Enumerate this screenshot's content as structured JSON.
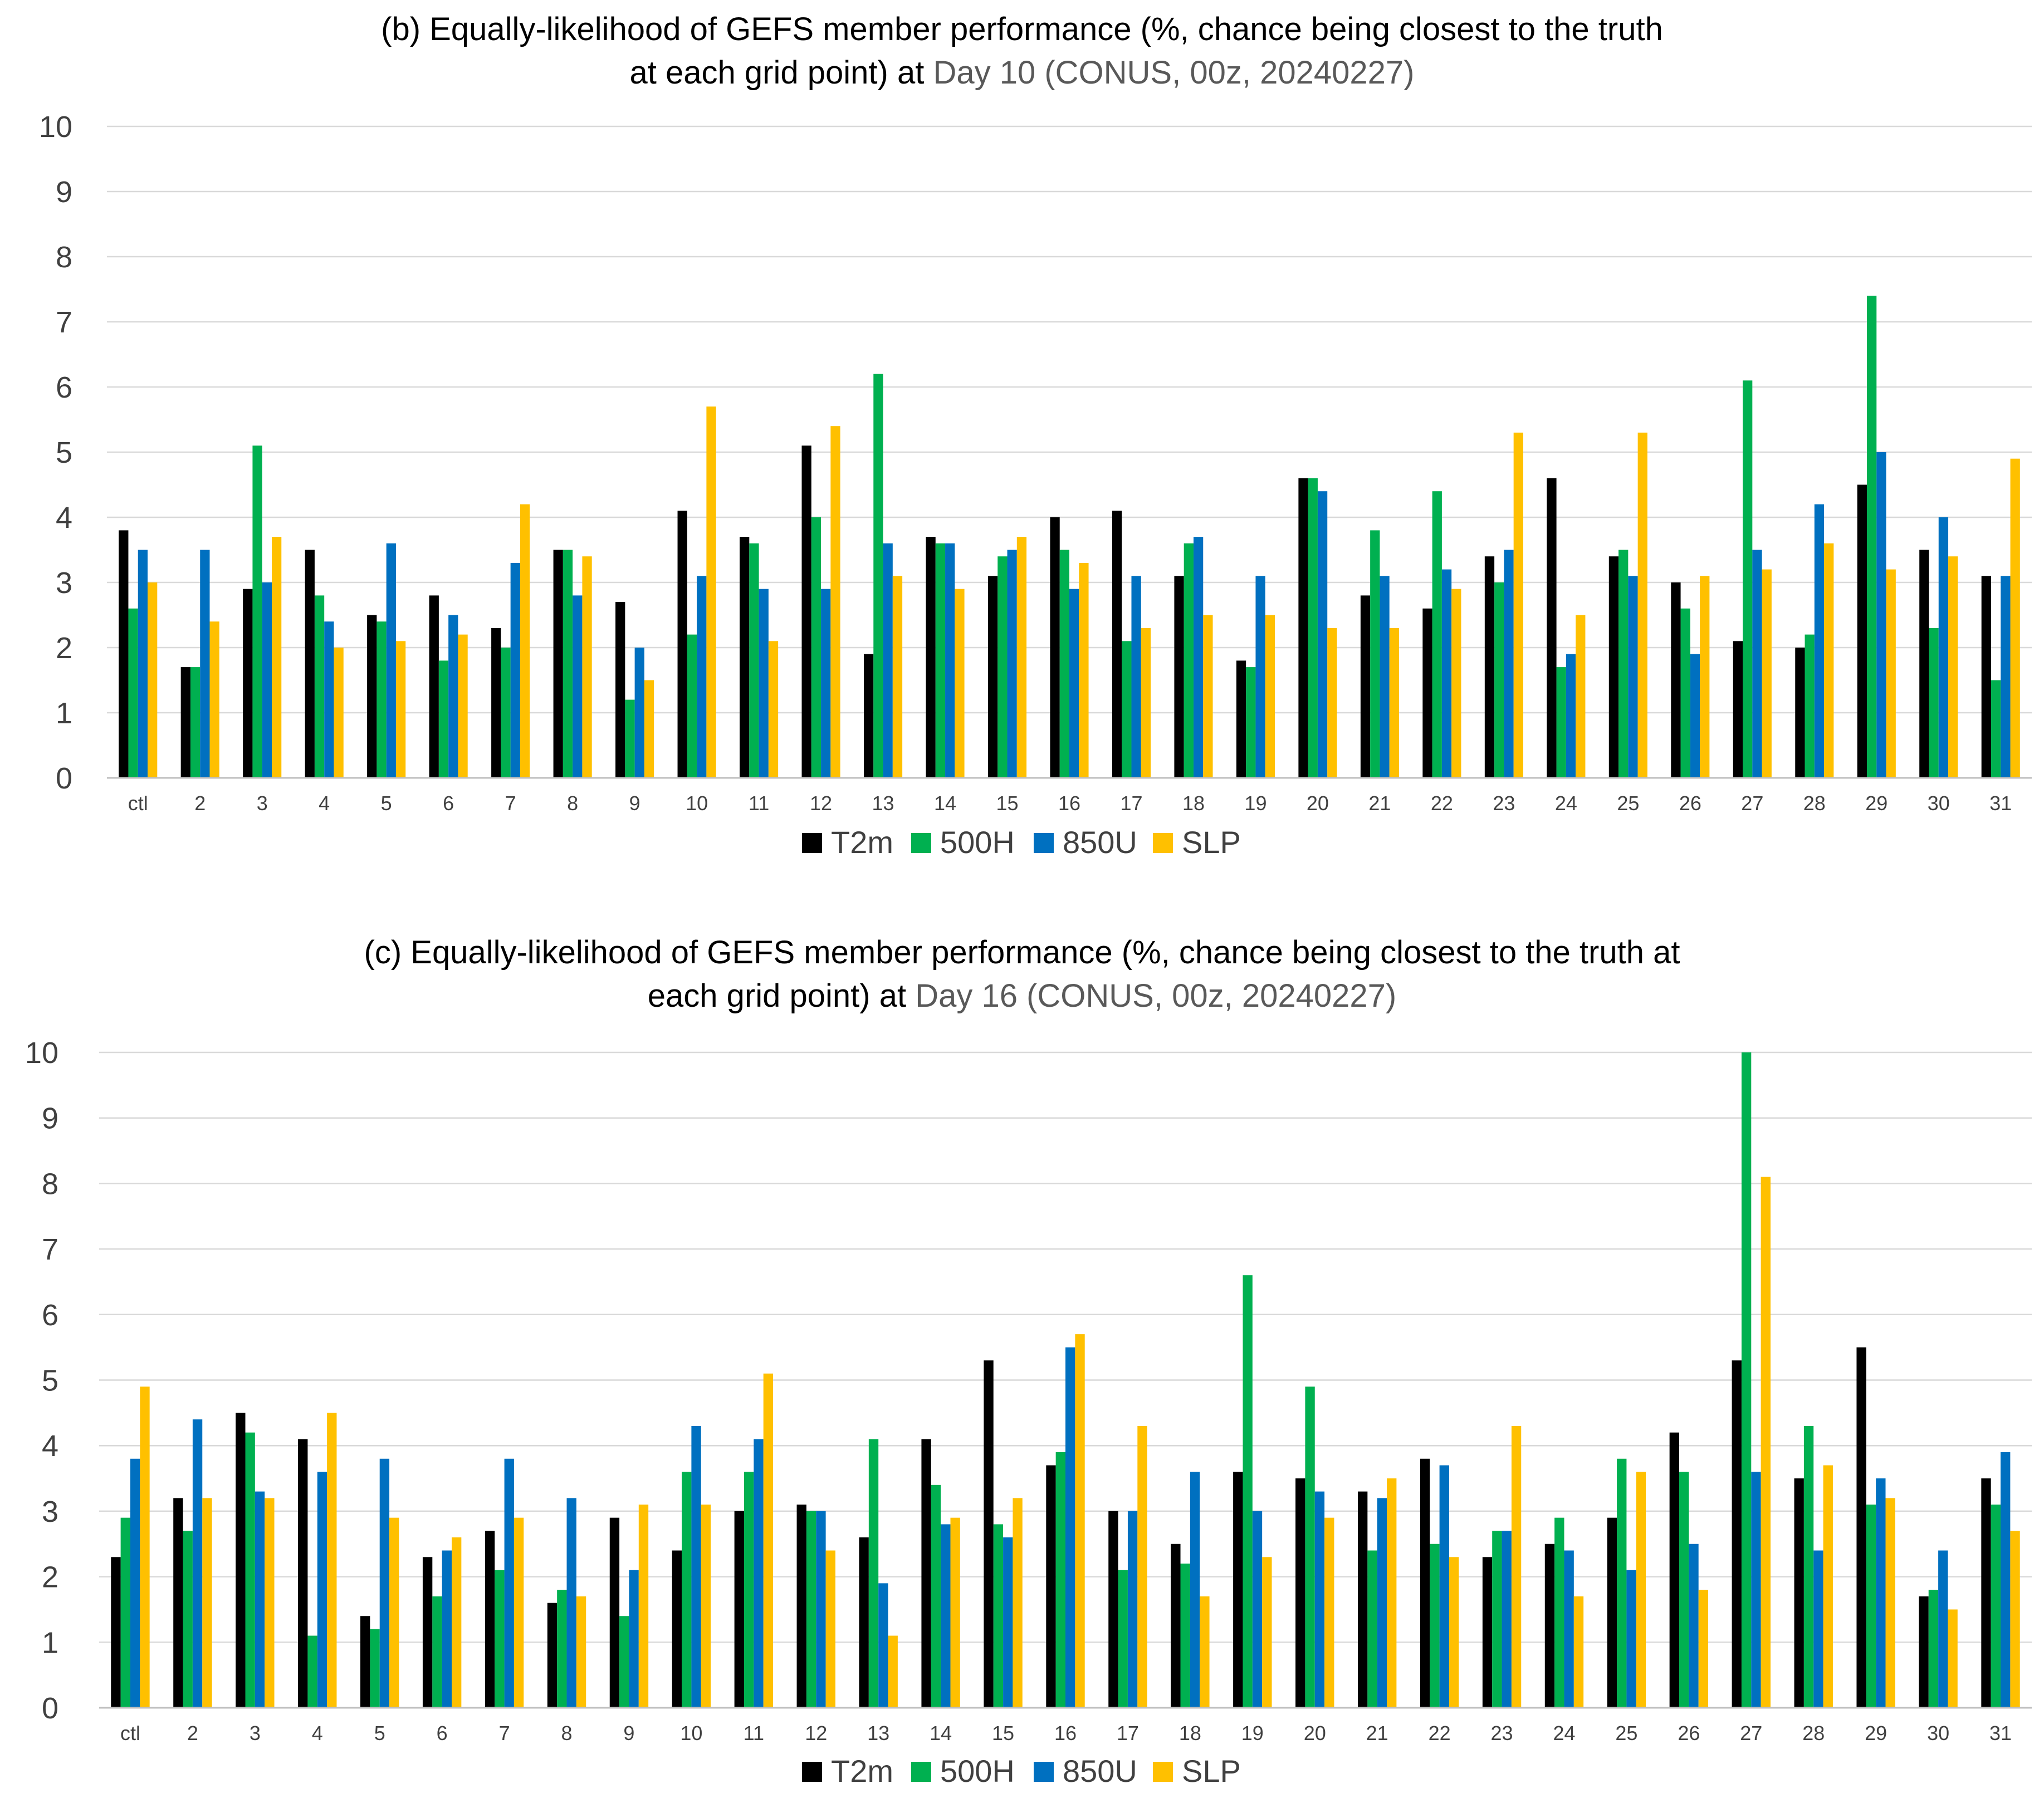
{
  "chart_data": [
    {
      "type": "bar",
      "title": "(b) Equally-likelihood of GEFS member performance (%, chance being closest to the truth at each grid point) at Day 10 (CONUS, 00z, 20240227)",
      "title_line1": "(b) Equally-likelihood of GEFS member performance (%, chance being closest to the truth",
      "title_line2_prefix": "at each grid point) at ",
      "title_line2_highlight": "Day 10 (CONUS, 00z, 20240227)",
      "xlabel": "",
      "ylabel": "",
      "ylim": [
        0,
        10
      ],
      "yticks": [
        0,
        1,
        2,
        3,
        4,
        5,
        6,
        7,
        8,
        9,
        10
      ],
      "grid": true,
      "legend_position": "bottom-center",
      "categories": [
        "ctl",
        "2",
        "3",
        "4",
        "5",
        "6",
        "7",
        "8",
        "9",
        "10",
        "11",
        "12",
        "13",
        "14",
        "15",
        "16",
        "17",
        "18",
        "19",
        "20",
        "21",
        "22",
        "23",
        "24",
        "25",
        "26",
        "27",
        "28",
        "29",
        "30",
        "31"
      ],
      "series": [
        {
          "name": "T2m",
          "color": "#000000",
          "values": [
            3.8,
            1.7,
            2.9,
            3.5,
            2.5,
            2.8,
            2.3,
            3.5,
            2.7,
            4.1,
            3.7,
            5.1,
            1.9,
            3.7,
            3.1,
            4.0,
            4.1,
            3.1,
            1.8,
            4.6,
            2.8,
            2.6,
            3.4,
            4.6,
            3.4,
            3.0,
            2.1,
            2.0,
            4.5,
            3.5,
            3.1
          ]
        },
        {
          "name": "500H",
          "color": "#00b050",
          "values": [
            2.6,
            1.7,
            5.1,
            2.8,
            2.4,
            1.8,
            2.0,
            3.5,
            1.2,
            2.2,
            3.6,
            4.0,
            6.2,
            3.6,
            3.4,
            3.5,
            2.1,
            3.6,
            1.7,
            4.6,
            3.8,
            4.4,
            3.0,
            1.7,
            3.5,
            2.6,
            6.1,
            2.2,
            7.4,
            2.3,
            1.5
          ]
        },
        {
          "name": "850U",
          "color": "#0070c0",
          "values": [
            3.5,
            3.5,
            3.0,
            2.4,
            3.6,
            2.5,
            3.3,
            2.8,
            2.0,
            3.1,
            2.9,
            2.9,
            3.6,
            3.6,
            3.5,
            2.9,
            3.1,
            3.7,
            3.1,
            4.4,
            3.1,
            3.2,
            3.5,
            1.9,
            3.1,
            1.9,
            3.5,
            4.2,
            5.0,
            4.0,
            3.1
          ]
        },
        {
          "name": "SLP",
          "color": "#ffc000",
          "values": [
            3.0,
            2.4,
            3.7,
            2.0,
            2.1,
            2.2,
            4.2,
            3.4,
            1.5,
            5.7,
            2.1,
            5.4,
            3.1,
            2.9,
            3.7,
            3.3,
            2.3,
            2.5,
            2.5,
            2.3,
            2.3,
            2.9,
            5.3,
            2.5,
            5.3,
            3.1,
            3.2,
            3.6,
            3.2,
            3.4,
            4.9
          ]
        }
      ]
    },
    {
      "type": "bar",
      "title": "(c) Equally-likelihood of GEFS member performance (%, chance being closest to the truth at each grid point) at Day 16 (CONUS, 00z, 20240227)",
      "title_line1": "(c) Equally-likelihood of GEFS member performance (%, chance being closest to the truth at",
      "title_line2_prefix": "each grid point) at ",
      "title_line2_highlight": "Day 16 (CONUS, 00z, 20240227)",
      "xlabel": "",
      "ylabel": "",
      "ylim": [
        0,
        10
      ],
      "yticks": [
        0,
        1,
        2,
        3,
        4,
        5,
        6,
        7,
        8,
        9,
        10
      ],
      "grid": true,
      "legend_position": "bottom-center",
      "categories": [
        "ctl",
        "2",
        "3",
        "4",
        "5",
        "6",
        "7",
        "8",
        "9",
        "10",
        "11",
        "12",
        "13",
        "14",
        "15",
        "16",
        "17",
        "18",
        "19",
        "20",
        "21",
        "22",
        "23",
        "24",
        "25",
        "26",
        "27",
        "28",
        "29",
        "30",
        "31"
      ],
      "series": [
        {
          "name": "T2m",
          "color": "#000000",
          "values": [
            2.3,
            3.2,
            4.5,
            4.1,
            1.4,
            2.3,
            2.7,
            1.6,
            2.9,
            2.4,
            3.0,
            3.1,
            2.6,
            4.1,
            5.3,
            3.7,
            3.0,
            2.5,
            3.6,
            3.5,
            3.3,
            3.8,
            2.3,
            2.5,
            2.9,
            4.2,
            5.3,
            3.5,
            5.5,
            1.7,
            3.5
          ]
        },
        {
          "name": "500H",
          "color": "#00b050",
          "values": [
            2.9,
            2.7,
            4.2,
            1.1,
            1.2,
            1.7,
            2.1,
            1.8,
            1.4,
            3.6,
            3.6,
            3.0,
            4.1,
            3.4,
            2.8,
            3.9,
            2.1,
            2.2,
            6.6,
            4.9,
            2.4,
            2.5,
            2.7,
            2.9,
            3.8,
            3.6,
            10.0,
            4.3,
            3.1,
            1.8,
            3.1
          ]
        },
        {
          "name": "850U",
          "color": "#0070c0",
          "values": [
            3.8,
            4.4,
            3.3,
            3.6,
            3.8,
            2.4,
            3.8,
            3.2,
            2.1,
            4.3,
            4.1,
            3.0,
            1.9,
            2.8,
            2.6,
            5.5,
            3.0,
            3.6,
            3.0,
            3.3,
            3.2,
            3.7,
            2.7,
            2.4,
            2.1,
            2.5,
            3.6,
            2.4,
            3.5,
            2.4,
            3.9
          ]
        },
        {
          "name": "SLP",
          "color": "#ffc000",
          "values": [
            4.9,
            3.2,
            3.2,
            4.5,
            2.9,
            2.6,
            2.9,
            1.7,
            3.1,
            3.1,
            5.1,
            2.4,
            1.1,
            2.9,
            3.2,
            5.7,
            4.3,
            1.7,
            2.3,
            2.9,
            3.5,
            2.3,
            4.3,
            1.7,
            3.6,
            1.8,
            8.1,
            3.7,
            3.2,
            1.5,
            2.7
          ]
        }
      ]
    }
  ]
}
